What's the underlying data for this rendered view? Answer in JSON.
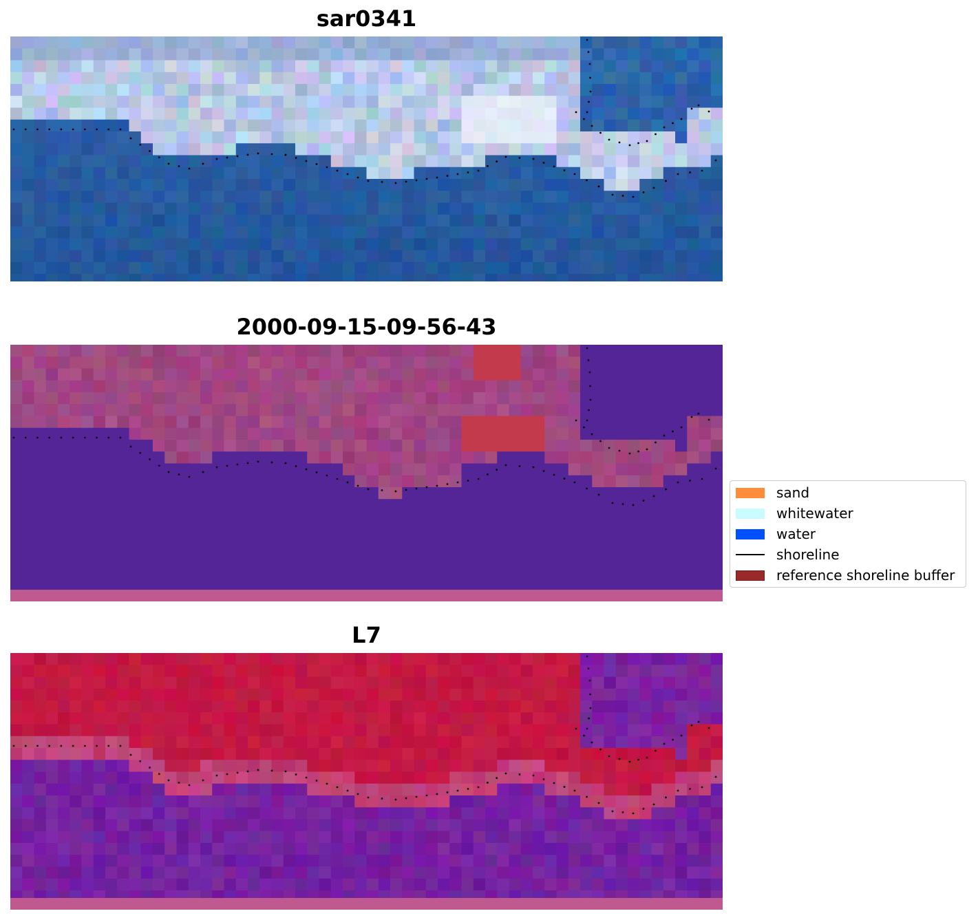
{
  "panels": [
    {
      "title": "sar0341",
      "style": "rgb"
    },
    {
      "title": "2000-09-15-09-56-43",
      "style": "classified"
    },
    {
      "title": "L7",
      "style": "index"
    }
  ],
  "legend": {
    "items": [
      {
        "label": "sand",
        "color": "#ff8c3a",
        "kind": "patch"
      },
      {
        "label": "whitewater",
        "color": "#c8fcff",
        "kind": "patch"
      },
      {
        "label": "water",
        "color": "#0050ff",
        "kind": "patch"
      },
      {
        "label": "shoreline",
        "color": "#000000",
        "kind": "line"
      },
      {
        "label": "reference shoreline buffer",
        "color": "#9a2a2a",
        "kind": "patch"
      }
    ]
  },
  "colors": {
    "rgb_water": "#2e64a8",
    "rgb_cloud": "#c8d4ee",
    "class_water": "#532597",
    "class_land": "#a44c86",
    "class_buffer": "#c23a4c",
    "class_strip": "#c0598f",
    "index_land": "#c21a45",
    "index_mid": "#c24e85",
    "index_water": "#7a23a0",
    "shoreline_dots": "#000000"
  }
}
